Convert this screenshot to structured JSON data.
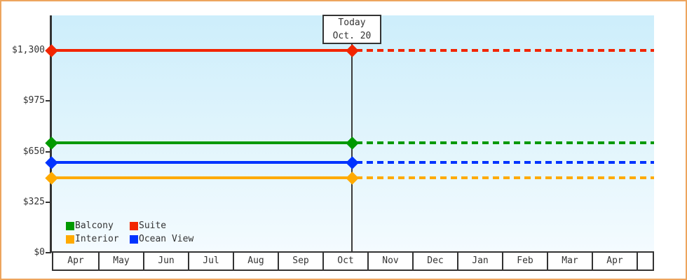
{
  "window": {
    "border_color": "#eda55e",
    "background": "#ffffff",
    "text_color": "#333333"
  },
  "today": {
    "label": "Today",
    "date": "Oct. 20"
  },
  "legend": {
    "items": [
      {
        "label": "Balcony",
        "color": "#009900"
      },
      {
        "label": "Suite",
        "color": "#f22500"
      },
      {
        "label": "Interior",
        "color": "#ffaa00"
      },
      {
        "label": "Ocean View",
        "color": "#0033ff"
      }
    ]
  },
  "chart_data": {
    "type": "line",
    "title": "",
    "xlabel": "",
    "ylabel": "",
    "ylim": [
      0,
      1300
    ],
    "grid": false,
    "legend_position": "bottom-left inside plot",
    "x_categories": [
      "Apr",
      "May",
      "Jun",
      "Jul",
      "Aug",
      "Sep",
      "Oct",
      "Nov",
      "Dec",
      "Jan",
      "Feb",
      "Mar",
      "Apr",
      ""
    ],
    "y_ticks": [
      {
        "label": "$0",
        "value": 0
      },
      {
        "label": "$325",
        "value": 325
      },
      {
        "label": "$650",
        "value": 650
      },
      {
        "label": "$975",
        "value": 975
      },
      {
        "label": "$1,300",
        "value": 1300
      }
    ],
    "today_marker": {
      "label": "Today",
      "date": "Oct. 20",
      "month": "Oct"
    },
    "line_style_before_today": "solid",
    "line_style_after_today": "dotted",
    "series": [
      {
        "name": "Suite",
        "color": "#f22500",
        "value": 1300
      },
      {
        "name": "Balcony",
        "color": "#009900",
        "value": 705
      },
      {
        "name": "Ocean View",
        "color": "#0033ff",
        "value": 580
      },
      {
        "name": "Interior",
        "color": "#ffaa00",
        "value": 480
      }
    ]
  }
}
